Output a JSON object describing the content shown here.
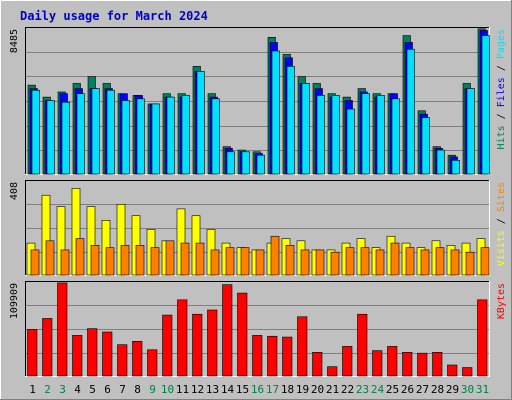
{
  "chart_data": {
    "type": "bar",
    "title": "Daily usage for March 2024",
    "title_color": "#0000CC",
    "days": [
      "1",
      "2",
      "3",
      "4",
      "5",
      "6",
      "7",
      "8",
      "9",
      "10",
      "11",
      "12",
      "13",
      "14",
      "15",
      "16",
      "17",
      "18",
      "19",
      "20",
      "21",
      "22",
      "23",
      "24",
      "25",
      "26",
      "27",
      "28",
      "29",
      "30",
      "31"
    ],
    "weekend_days": [
      "2",
      "3",
      "9",
      "10",
      "16",
      "17",
      "23",
      "24",
      "30",
      "31"
    ],
    "colors": {
      "hits": "#00805C",
      "files": "#0000FF",
      "pages": "#00E0FF",
      "visits": "#FFFF00",
      "sites": "#FF8000",
      "kbytes": "#FF0000",
      "weekday_label": "#000000",
      "weekend_label": "#008040",
      "background": "#C0C0C0"
    },
    "panels": [
      {
        "name": "hits-files-pages",
        "max_label": "8485",
        "max": 8485,
        "legend": [
          "Pages",
          "Files",
          "Hits"
        ],
        "series": [
          {
            "name": "Hits",
            "values": [
              5200,
              4500,
              4800,
              5300,
              5700,
              5300,
              4700,
              4600,
              4100,
              4700,
              4700,
              6300,
              4700,
              1600,
              1400,
              1300,
              8000,
              7000,
              5700,
              5300,
              4700,
              4500,
              5000,
              4700,
              4700,
              8100,
              3700,
              1600,
              1100,
              5300,
              8500
            ]
          },
          {
            "name": "Files",
            "values": [
              5000,
              4300,
              4700,
              5000,
              5000,
              5000,
              4700,
              4600,
              4100,
              4500,
              4500,
              6000,
              4500,
              1500,
              1300,
              1200,
              7700,
              6800,
              5300,
              5000,
              4500,
              4300,
              4800,
              4500,
              4700,
              7700,
              3500,
              1500,
              1000,
              5000,
              8400
            ]
          },
          {
            "name": "Pages",
            "values": [
              4900,
              4300,
              4200,
              4700,
              5000,
              4900,
              4300,
              4400,
              4100,
              4500,
              4600,
              6000,
              4400,
              1300,
              1300,
              1100,
              7200,
              6300,
              5300,
              4600,
              4600,
              3800,
              4700,
              4600,
              4400,
              7300,
              3300,
              1400,
              800,
              5000,
              8100
            ]
          }
        ]
      },
      {
        "name": "visits-sites",
        "max_label": "408",
        "max": 408,
        "legend": [
          "Sites",
          "Visits"
        ],
        "series": [
          {
            "name": "Visits",
            "values": [
              140,
              350,
              300,
              380,
              300,
              240,
              310,
              260,
              200,
              150,
              290,
              260,
              200,
              140,
              120,
              110,
              140,
              160,
              150,
              110,
              110,
              140,
              160,
              120,
              170,
              140,
              120,
              150,
              130,
              140,
              160
            ]
          },
          {
            "name": "Sites",
            "values": [
              110,
              150,
              110,
              160,
              130,
              120,
              130,
              130,
              120,
              150,
              140,
              140,
              110,
              120,
              120,
              110,
              170,
              130,
              110,
              110,
              100,
              120,
              120,
              110,
              140,
              120,
              110,
              120,
              110,
              100,
              120
            ]
          }
        ]
      },
      {
        "name": "kbytes",
        "max_label": "109909",
        "max": 109909,
        "legend": [
          "KBytes"
        ],
        "series": [
          {
            "name": "KBytes",
            "values": [
              55000,
              68000,
              110000,
              48000,
              56000,
              52000,
              37000,
              41000,
              31000,
              72000,
              90000,
              73000,
              78000,
              108000,
              98000,
              48000,
              47000,
              46000,
              70000,
              28000,
              11000,
              35000,
              73000,
              30000,
              35000,
              28000,
              27000,
              28000,
              13000,
              10000,
              90000
            ]
          }
        ]
      }
    ]
  }
}
